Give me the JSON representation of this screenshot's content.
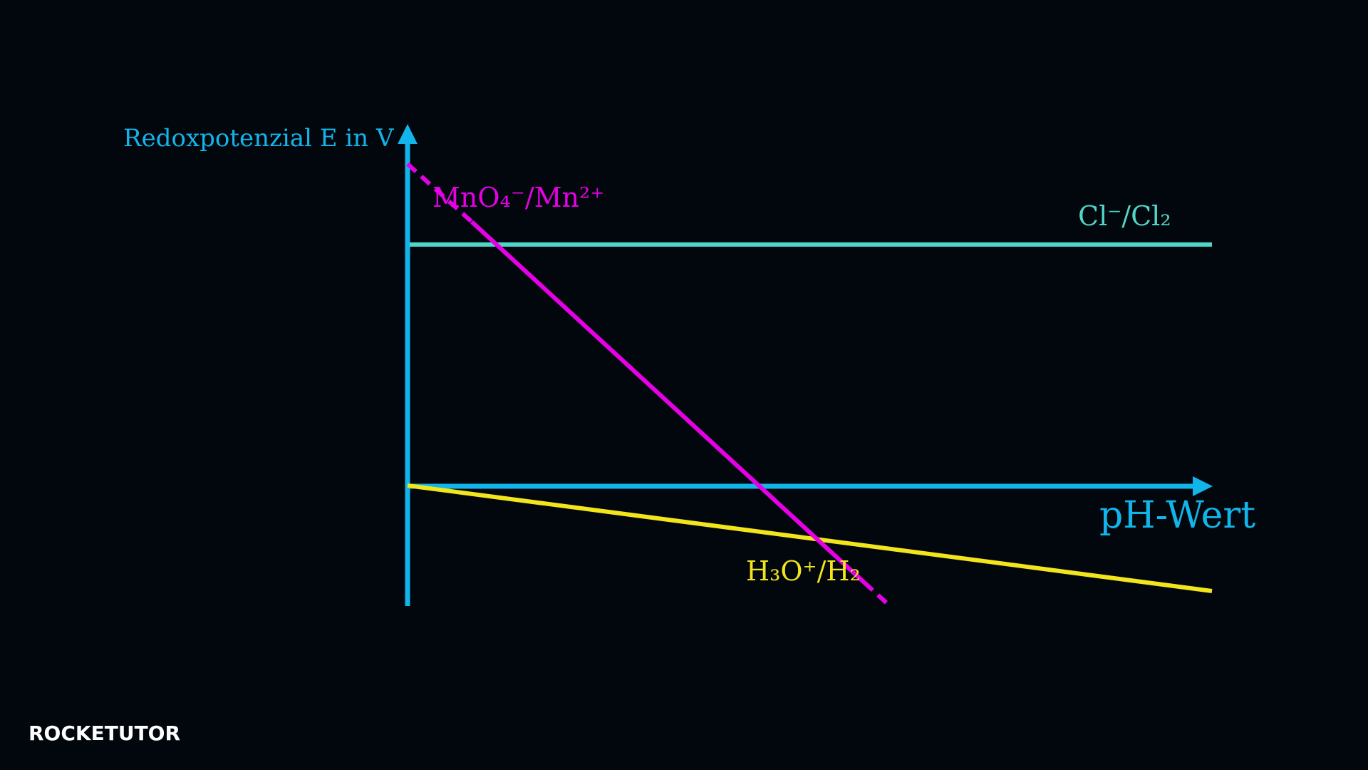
{
  "axes": {
    "y_label": "Redoxpotenzial E in V",
    "x_label": "pH-Wert"
  },
  "lines": [
    {
      "label": "MnO₄⁻/Mn²⁺",
      "color": "#e600e6"
    },
    {
      "label": "Cl⁻/Cl₂",
      "color": "#4fd6c8"
    },
    {
      "label": "H₃O⁺/H₂",
      "color": "#f2e51c"
    }
  ],
  "logo": "ROCKETUTOR"
}
